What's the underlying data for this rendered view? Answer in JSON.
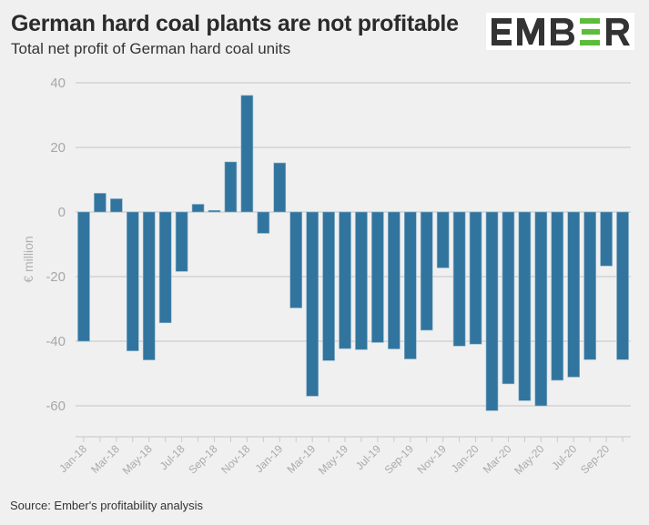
{
  "header": {
    "title": "German hard coal plants are not profitable",
    "subtitle": "Total net profit of German hard coal units",
    "logo_text": "EMBER",
    "logo_colors": {
      "dark": "#333333",
      "accent": "#5bbd3a"
    }
  },
  "footer": {
    "source": "Source: Ember's profitability analysis"
  },
  "colors": {
    "background": "#f0f0f0",
    "bar": "#31759f",
    "bar_outline": "#8fb3cb",
    "grid": "#cccccc",
    "tick_text": "#a8a8a8"
  },
  "chart_data": {
    "type": "bar",
    "title": "German hard coal plants are not profitable",
    "subtitle": "Total net profit of German hard coal units",
    "xlabel": "",
    "ylabel": "€ million",
    "ylim": [
      -70,
      40
    ],
    "yticks": [
      40,
      20,
      0,
      -20,
      -40,
      -60
    ],
    "grid": true,
    "legend": "none",
    "categories": [
      "Jan-18",
      "Feb-18",
      "Mar-18",
      "Apr-18",
      "May-18",
      "Jun-18",
      "Jul-18",
      "Aug-18",
      "Sep-18",
      "Oct-18",
      "Nov-18",
      "Dec-18",
      "Jan-19",
      "Feb-19",
      "Mar-19",
      "Apr-19",
      "May-19",
      "Jun-19",
      "Jul-19",
      "Aug-19",
      "Sep-19",
      "Oct-19",
      "Nov-19",
      "Dec-19",
      "Jan-20",
      "Feb-20",
      "Mar-20",
      "Apr-20",
      "May-20",
      "Jun-20",
      "Jul-20",
      "Aug-20",
      "Sep-20",
      "Oct-20"
    ],
    "tick_labels": [
      "Jan-18",
      "Mar-18",
      "May-18",
      "Jul-18",
      "Sep-18",
      "Nov-18",
      "Jan-19",
      "Mar-19",
      "May-19",
      "Jul-19",
      "Sep-19",
      "Nov-19",
      "Jan-20",
      "Mar-20",
      "May-20",
      "Jul-20",
      "Sep-20"
    ],
    "values": [
      -40.0,
      5.8,
      4.1,
      -43.0,
      -45.8,
      -34.3,
      -18.4,
      2.4,
      0.5,
      15.5,
      36.1,
      -6.6,
      15.2,
      -29.7,
      -57.0,
      -46.0,
      -42.3,
      -42.6,
      -40.4,
      -42.4,
      -45.5,
      -36.6,
      -17.3,
      -41.5,
      -40.9,
      -61.5,
      -53.2,
      -58.4,
      -60.0,
      -52.1,
      -51.1,
      -45.7,
      -16.7,
      -45.7
    ]
  }
}
